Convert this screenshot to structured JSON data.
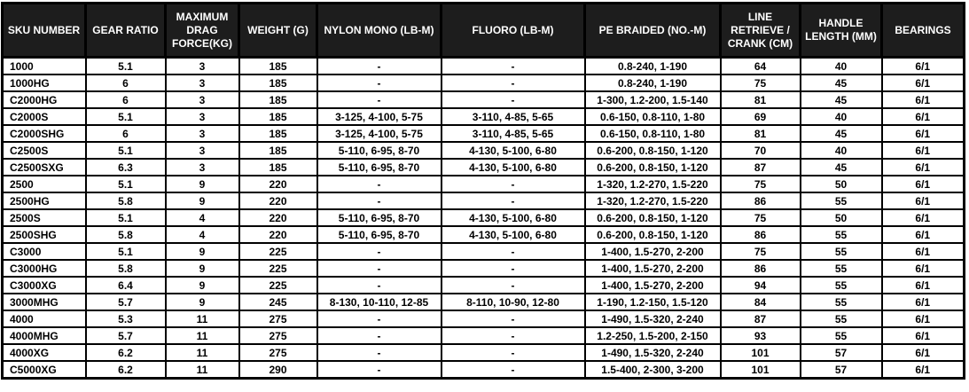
{
  "colors": {
    "header_bg": "#1d1d1d",
    "header_text": "#ffffff",
    "body_bg": "#ffffff",
    "body_text": "#000000",
    "border": "#000000"
  },
  "table": {
    "columns": [
      {
        "id": "sku-number",
        "label": "SKU NUMBER"
      },
      {
        "id": "gear-ratio",
        "label": "GEAR RATIO"
      },
      {
        "id": "max-drag",
        "label": "MAXIMUM DRAG FORCE(KG)"
      },
      {
        "id": "weight",
        "label": "WEIGHT (G)"
      },
      {
        "id": "nylon-mono",
        "label": "NYLON MONO (LB-M)"
      },
      {
        "id": "fluoro",
        "label": "FLUORO (LB-M)"
      },
      {
        "id": "pe-braided",
        "label": "PE BRAIDED (NO.-M)"
      },
      {
        "id": "line-retrieve",
        "label": "LINE RETRIEVE / CRANK (CM)"
      },
      {
        "id": "handle-length",
        "label": "HANDLE LENGTH (MM)"
      },
      {
        "id": "bearings",
        "label": "BEARINGS"
      }
    ],
    "rows": [
      [
        "1000",
        "5.1",
        "3",
        "185",
        "-",
        "-",
        "0.8-240, 1-190",
        "64",
        "40",
        "6/1"
      ],
      [
        "1000HG",
        "6",
        "3",
        "185",
        "-",
        "-",
        "0.8-240, 1-190",
        "75",
        "45",
        "6/1"
      ],
      [
        "C2000HG",
        "6",
        "3",
        "185",
        "-",
        "-",
        "1-300, 1.2-200, 1.5-140",
        "81",
        "45",
        "6/1"
      ],
      [
        "C2000S",
        "5.1",
        "3",
        "185",
        "3-125, 4-100, 5-75",
        "3-110, 4-85, 5-65",
        "0.6-150, 0.8-110, 1-80",
        "69",
        "40",
        "6/1"
      ],
      [
        "C2000SHG",
        "6",
        "3",
        "185",
        "3-125, 4-100, 5-75",
        "3-110, 4-85, 5-65",
        "0.6-150, 0.8-110, 1-80",
        "81",
        "45",
        "6/1"
      ],
      [
        "C2500S",
        "5.1",
        "3",
        "185",
        "5-110, 6-95, 8-70",
        "4-130, 5-100, 6-80",
        "0.6-200, 0.8-150, 1-120",
        "70",
        "40",
        "6/1"
      ],
      [
        "C2500SXG",
        "6.3",
        "3",
        "185",
        "5-110, 6-95, 8-70",
        "4-130, 5-100, 6-80",
        "0.6-200, 0.8-150, 1-120",
        "87",
        "45",
        "6/1"
      ],
      [
        "2500",
        "5.1",
        "9",
        "220",
        "-",
        "-",
        "1-320, 1.2-270, 1.5-220",
        "75",
        "50",
        "6/1"
      ],
      [
        "2500HG",
        "5.8",
        "9",
        "220",
        "-",
        "-",
        "1-320, 1.2-270, 1.5-220",
        "86",
        "55",
        "6/1"
      ],
      [
        "2500S",
        "5.1",
        "4",
        "220",
        "5-110, 6-95, 8-70",
        "4-130, 5-100, 6-80",
        "0.6-200, 0.8-150, 1-120",
        "75",
        "50",
        "6/1"
      ],
      [
        "2500SHG",
        "5.8",
        "4",
        "220",
        "5-110, 6-95, 8-70",
        "4-130, 5-100, 6-80",
        "0.6-200, 0.8-150, 1-120",
        "86",
        "55",
        "6/1"
      ],
      [
        "C3000",
        "5.1",
        "9",
        "225",
        "-",
        "-",
        "1-400, 1.5-270, 2-200",
        "75",
        "55",
        "6/1"
      ],
      [
        "C3000HG",
        "5.8",
        "9",
        "225",
        "-",
        "-",
        "1-400, 1.5-270, 2-200",
        "86",
        "55",
        "6/1"
      ],
      [
        "C3000XG",
        "6.4",
        "9",
        "225",
        "-",
        "-",
        "1-400, 1.5-270, 2-200",
        "94",
        "55",
        "6/1"
      ],
      [
        "3000MHG",
        "5.7",
        "9",
        "245",
        "8-130, 10-110, 12-85",
        "8-110, 10-90, 12-80",
        "1-190, 1.2-150, 1.5-120",
        "84",
        "55",
        "6/1"
      ],
      [
        "4000",
        "5.3",
        "11",
        "275",
        "-",
        "-",
        "1-490, 1.5-320, 2-240",
        "87",
        "55",
        "6/1"
      ],
      [
        "4000MHG",
        "5.7",
        "11",
        "275",
        "-",
        "-",
        "1.2-250, 1.5-200, 2-150",
        "93",
        "55",
        "6/1"
      ],
      [
        "4000XG",
        "6.2",
        "11",
        "275",
        "-",
        "-",
        "1-490, 1.5-320, 2-240",
        "101",
        "57",
        "6/1"
      ],
      [
        "C5000XG",
        "6.2",
        "11",
        "290",
        "-",
        "-",
        "1.5-400, 2-300, 3-200",
        "101",
        "57",
        "6/1"
      ]
    ]
  }
}
